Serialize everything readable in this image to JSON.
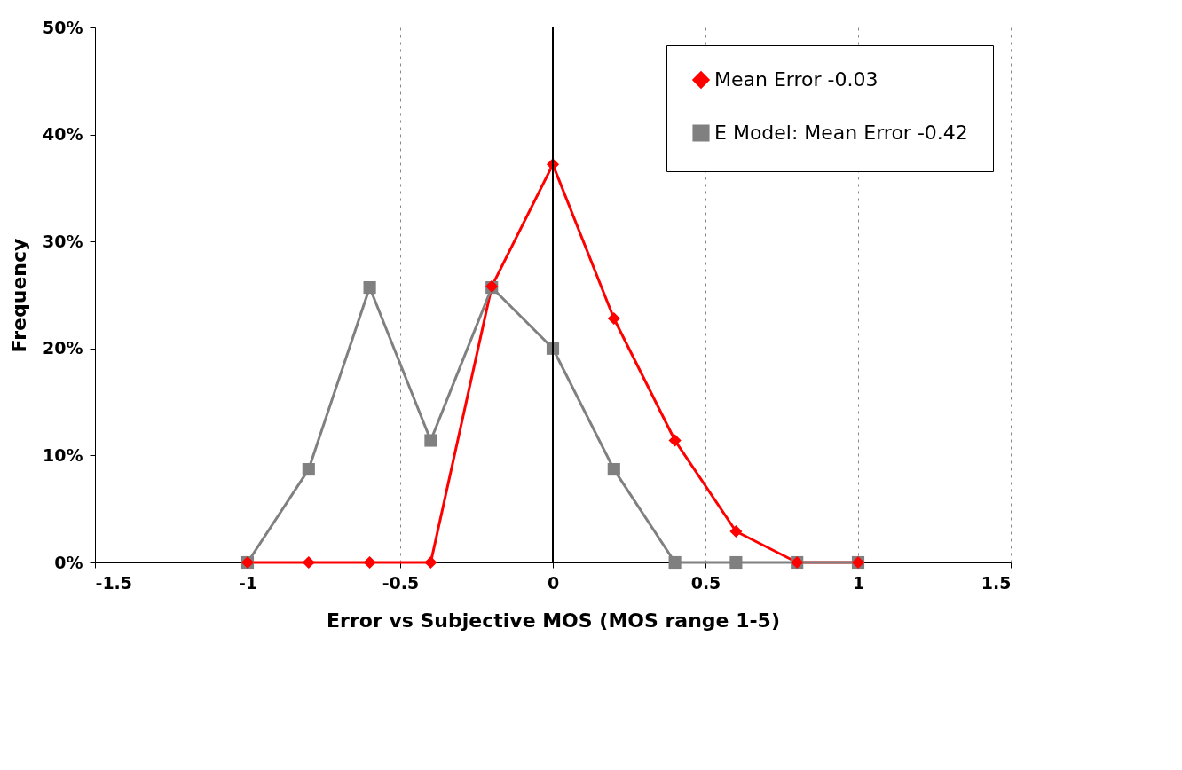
{
  "chart_data": {
    "type": "line",
    "xlabel": "Error vs Subjective MOS (MOS range 1-5)",
    "ylabel": "Frequency",
    "x": [
      -1,
      -0.8,
      -0.6,
      -0.4,
      -0.2,
      0,
      0.2,
      0.4,
      0.6,
      0.8,
      1
    ],
    "series": [
      {
        "name": "Mean Error -0.03",
        "color": "#ff0000",
        "marker": "diamond",
        "values": [
          0,
          0,
          0,
          0,
          25.8,
          37.2,
          22.8,
          11.4,
          2.9,
          0,
          0
        ]
      },
      {
        "name": "E Model: Mean Error -0.42",
        "color": "#808080",
        "marker": "square",
        "values": [
          0,
          8.7,
          25.7,
          11.4,
          25.7,
          20,
          8.7,
          0,
          0,
          0,
          0
        ]
      }
    ],
    "xlim": [
      -1.5,
      1.5
    ],
    "xticks": [
      -1.5,
      -1,
      -0.5,
      0,
      0.5,
      1,
      1.5
    ],
    "ylim": [
      0,
      50
    ],
    "yticks": [
      {
        "value": 0,
        "label": "0%"
      },
      {
        "value": 10,
        "label": "10%"
      },
      {
        "value": 20,
        "label": "20%"
      },
      {
        "value": 30,
        "label": "30%"
      },
      {
        "value": 40,
        "label": "40%"
      },
      {
        "value": 50,
        "label": "50%"
      }
    ],
    "ref_lines": [
      {
        "axis": "x",
        "value": 0,
        "color": "#000000"
      }
    ],
    "grid": "x",
    "legend": "top right"
  }
}
